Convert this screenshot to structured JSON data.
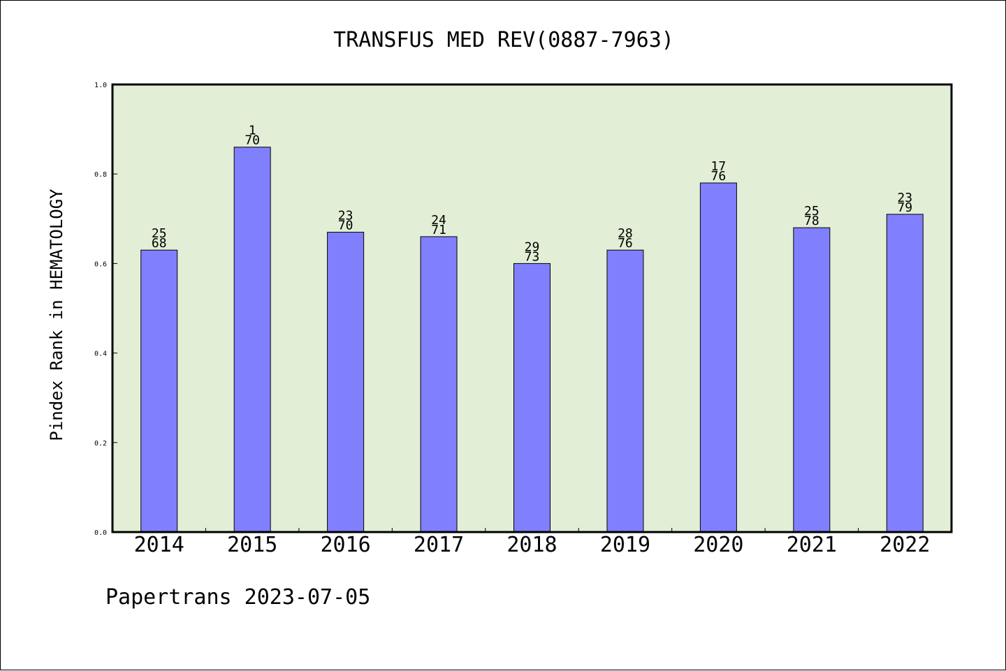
{
  "chart_data": {
    "type": "bar",
    "title": "TRANSFUS MED REV(0887-7963)",
    "ylabel": "Pindex Rank in HEMATOLOGY",
    "xlabel": "",
    "ylim": [
      0,
      1.0
    ],
    "yticks": [
      "0.0",
      "0.2",
      "0.4",
      "0.6",
      "0.8",
      "1.0"
    ],
    "categories": [
      "2014",
      "2015",
      "2016",
      "2017",
      "2018",
      "2019",
      "2020",
      "2021",
      "2022"
    ],
    "values": [
      0.63,
      0.86,
      0.67,
      0.66,
      0.6,
      0.63,
      0.78,
      0.68,
      0.71
    ],
    "rank": [
      "25",
      "1",
      "23",
      "24",
      "29",
      "28",
      "17",
      "25",
      "23"
    ],
    "total": [
      "68",
      "70",
      "70",
      "71",
      "73",
      "76",
      "76",
      "78",
      "79"
    ],
    "grid": false,
    "colors": {
      "plot_background": "#e2efd6",
      "bar_fill": "#8080ff",
      "bar_stroke": "#000000"
    }
  },
  "footer": {
    "source": "Papertrans 2023-07-05"
  }
}
